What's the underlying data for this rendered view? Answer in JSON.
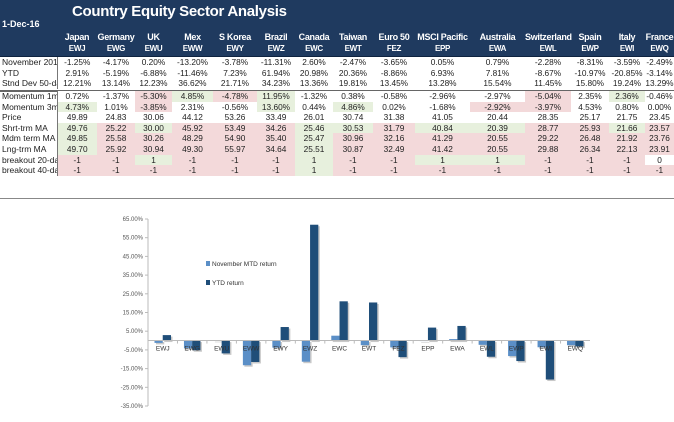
{
  "header": {
    "title": "Country Equity Sector Analysis",
    "date": "1-Dec-16"
  },
  "columns": [
    {
      "name": "Japan",
      "ticker": "EWJ"
    },
    {
      "name": "Germany",
      "ticker": "EWG"
    },
    {
      "name": "UK",
      "ticker": "EWU"
    },
    {
      "name": "Mex",
      "ticker": "EWW"
    },
    {
      "name": "S Korea",
      "ticker": "EWY"
    },
    {
      "name": "Brazil",
      "ticker": "EWZ"
    },
    {
      "name": "Canada",
      "ticker": "EWC"
    },
    {
      "name": "Taiwan",
      "ticker": "EWT"
    },
    {
      "name": "Euro 50",
      "ticker": "FEZ"
    },
    {
      "name": "MSCI Pacific",
      "ticker": "EPP"
    },
    {
      "name": "Australia",
      "ticker": "EWA"
    },
    {
      "name": "Switzerland",
      "ticker": "EWL"
    },
    {
      "name": "Spain",
      "ticker": "EWP"
    },
    {
      "name": "Italy",
      "ticker": "EWI"
    },
    {
      "name": "France",
      "ticker": "EWQ"
    }
  ],
  "colors": {
    "header_bg": "#1f3a5f",
    "positive_highlight": "#e7f0dd",
    "negative_highlight": "#f3d9da",
    "mtd_series": "#5b8fc7",
    "ytd_series": "#1f4e79"
  },
  "returns_table": [
    {
      "label": "November 2016",
      "values": [
        "-1.25%",
        "-4.17%",
        "0.20%",
        "-13.20%",
        "-3.78%",
        "-11.31%",
        "2.60%",
        "-2.47%",
        "-3.65%",
        "0.05%",
        "0.79%",
        "-2.28%",
        "-8.31%",
        "-3.59%",
        "-2.49%"
      ]
    },
    {
      "label": "YTD",
      "values": [
        "2.91%",
        "-5.19%",
        "-6.88%",
        "-11.46%",
        "7.23%",
        "61.94%",
        "20.98%",
        "20.36%",
        "-8.86%",
        "6.93%",
        "7.81%",
        "-8.67%",
        "-10.97%",
        "-20.85%",
        "-3.14%"
      ]
    },
    {
      "label": "Stnd Dev 50-day Ann",
      "values": [
        "12.21%",
        "13.14%",
        "12.23%",
        "36.62%",
        "21.71%",
        "34.23%",
        "13.36%",
        "19.81%",
        "13.45%",
        "13.28%",
        "15.54%",
        "11.45%",
        "15.80%",
        "19.24%",
        "13.29%"
      ]
    }
  ],
  "signals_table": [
    {
      "label": "Momentum 1mnth",
      "values": [
        "0.72%",
        "-1.37%",
        "-5.30%",
        "4.85%",
        "-4.78%",
        "11.95%",
        "-1.32%",
        "0.38%",
        "-0.58%",
        "-2.96%",
        "-2.97%",
        "-5.04%",
        "2.35%",
        "2.36%",
        "-0.46%"
      ],
      "shade": [
        "w",
        "w",
        "r",
        "g",
        "r",
        "g",
        "w",
        "w",
        "w",
        "w",
        "w",
        "r",
        "w",
        "g",
        "w"
      ]
    },
    {
      "label": "Momentum 3mnth",
      "values": [
        "4.73%",
        "1.01%",
        "-3.85%",
        "2.31%",
        "-0.56%",
        "13.60%",
        "0.44%",
        "4.86%",
        "0.02%",
        "-1.68%",
        "-2.92%",
        "-3.97%",
        "4.53%",
        "0.80%",
        "0.00%"
      ],
      "shade": [
        "g",
        "w",
        "r",
        "w",
        "w",
        "g",
        "w",
        "g",
        "w",
        "w",
        "r",
        "r",
        "w",
        "w",
        "w"
      ]
    },
    {
      "label": "Price",
      "values": [
        "49.89",
        "24.83",
        "30.06",
        "44.12",
        "53.26",
        "33.49",
        "26.01",
        "30.74",
        "31.38",
        "41.05",
        "20.44",
        "28.35",
        "25.17",
        "21.75",
        "23.45"
      ],
      "shade": [
        "w",
        "w",
        "w",
        "w",
        "w",
        "w",
        "w",
        "w",
        "w",
        "w",
        "w",
        "w",
        "w",
        "w",
        "w"
      ]
    },
    {
      "label": "Shrt-trm MA",
      "values": [
        "49.76",
        "25.22",
        "30.00",
        "45.92",
        "53.49",
        "34.26",
        "25.46",
        "30.53",
        "31.79",
        "40.84",
        "20.39",
        "28.77",
        "25.93",
        "21.66",
        "23.57"
      ],
      "shade": [
        "g",
        "r",
        "g",
        "r",
        "r",
        "r",
        "g",
        "g",
        "r",
        "g",
        "g",
        "r",
        "r",
        "g",
        "r"
      ]
    },
    {
      "label": "Mdm term MA",
      "values": [
        "49.85",
        "25.58",
        "30.26",
        "48.29",
        "54.90",
        "35.40",
        "25.47",
        "30.96",
        "32.16",
        "41.29",
        "20.55",
        "29.22",
        "26.48",
        "21.92",
        "23.76"
      ],
      "shade": [
        "g",
        "r",
        "r",
        "r",
        "r",
        "r",
        "g",
        "r",
        "r",
        "r",
        "r",
        "r",
        "r",
        "r",
        "r"
      ]
    },
    {
      "label": "Lng-trm MA",
      "values": [
        "49.70",
        "25.92",
        "30.94",
        "49.30",
        "55.97",
        "34.64",
        "25.51",
        "30.87",
        "32.49",
        "41.42",
        "20.55",
        "29.88",
        "26.34",
        "22.13",
        "23.91"
      ],
      "shade": [
        "g",
        "r",
        "r",
        "r",
        "r",
        "r",
        "g",
        "r",
        "r",
        "r",
        "r",
        "r",
        "r",
        "r",
        "r"
      ]
    },
    {
      "label": "breakout 20-day",
      "values": [
        "-1",
        "-1",
        "1",
        "-1",
        "-1",
        "-1",
        "1",
        "-1",
        "-1",
        "1",
        "1",
        "-1",
        "-1",
        "-1",
        "0"
      ],
      "shade": [
        "r",
        "r",
        "g",
        "r",
        "r",
        "r",
        "g",
        "r",
        "r",
        "g",
        "g",
        "r",
        "r",
        "r",
        "w"
      ]
    },
    {
      "label": "breakout 40-day",
      "values": [
        "-1",
        "-1",
        "-1",
        "-1",
        "-1",
        "-1",
        "1",
        "-1",
        "-1",
        "-1",
        "-1",
        "-1",
        "-1",
        "-1",
        "-1"
      ],
      "shade": [
        "r",
        "r",
        "r",
        "r",
        "r",
        "r",
        "g",
        "r",
        "r",
        "r",
        "r",
        "r",
        "r",
        "r",
        "r"
      ]
    }
  ],
  "chart_data": {
    "type": "bar",
    "title": "",
    "xlabel": "",
    "ylabel": "",
    "categories": [
      "EWJ",
      "EWG",
      "EWU",
      "EWW",
      "EWY",
      "EWZ",
      "EWC",
      "EWT",
      "FEZ",
      "EPP",
      "EWA",
      "EWL",
      "EWP",
      "EWI",
      "EWQ"
    ],
    "series": [
      {
        "name": "November MTD return",
        "values": [
          -1.25,
          -4.17,
          0.2,
          -13.2,
          -3.78,
          -11.31,
          2.6,
          -2.47,
          -3.65,
          0.05,
          0.79,
          -2.28,
          -8.31,
          -3.59,
          -2.49
        ]
      },
      {
        "name": "YTD return",
        "values": [
          2.91,
          -5.19,
          -6.88,
          -11.46,
          7.23,
          61.94,
          20.98,
          20.36,
          -8.86,
          6.93,
          7.81,
          -8.67,
          -10.97,
          -20.85,
          -3.14
        ]
      }
    ],
    "ylim": [
      -35,
      65
    ],
    "yticks": [
      "65.00%",
      "55.00%",
      "45.00%",
      "35.00%",
      "25.00%",
      "15.00%",
      "5.00%",
      "-5.00%",
      "-15.00%",
      "-25.00%",
      "-35.00%"
    ],
    "ytick_values": [
      65,
      55,
      45,
      35,
      25,
      15,
      5,
      -5,
      -15,
      -25,
      -35
    ],
    "grid": false,
    "legend_position": "upper-left inside plot"
  }
}
